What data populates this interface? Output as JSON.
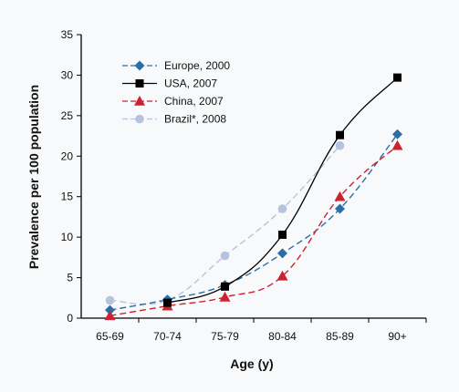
{
  "chart_data": {
    "type": "line",
    "xlabel": "Age (y)",
    "ylabel": "Prevalence per 100 population",
    "categories": [
      "65-69",
      "70-74",
      "75-79",
      "80-84",
      "85-89",
      "90+"
    ],
    "ylim": [
      0,
      35
    ],
    "yticks": [
      0,
      5,
      10,
      15,
      20,
      25,
      30,
      35
    ],
    "grid": false,
    "legend_position": "top-left",
    "series": [
      {
        "name": "Europe, 2000",
        "color": "#2a6ea6",
        "marker": "diamond",
        "dash": "dashed",
        "values": [
          1.0,
          2.3,
          4.1,
          8.0,
          13.5,
          22.7
        ]
      },
      {
        "name": "USA, 2007",
        "color": "#000000",
        "marker": "square",
        "dash": "solid",
        "values": [
          null,
          1.9,
          3.9,
          10.3,
          22.6,
          29.7
        ]
      },
      {
        "name": "China, 2007",
        "color": "#cc2233",
        "marker": "triangle",
        "dash": "dashed",
        "values": [
          0.3,
          1.5,
          2.6,
          5.2,
          15.0,
          21.3
        ]
      },
      {
        "name": "Brazil*, 2008",
        "color": "#b6c3de",
        "marker": "circle",
        "dash": "dashed",
        "values": [
          2.2,
          2.2,
          7.7,
          13.5,
          21.3,
          null
        ]
      }
    ]
  }
}
